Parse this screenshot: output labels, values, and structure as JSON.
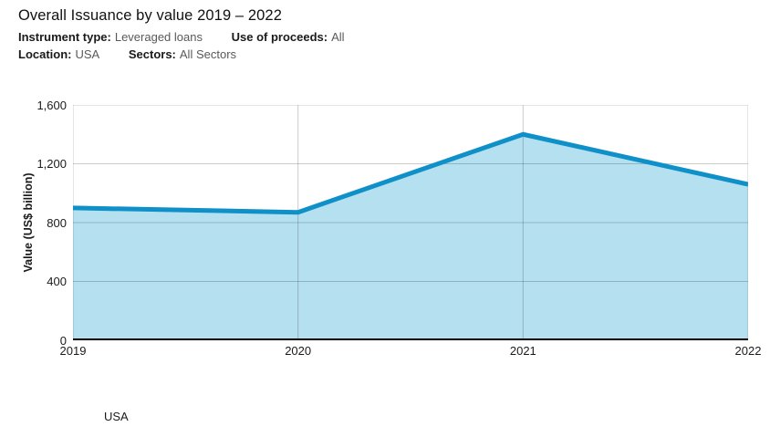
{
  "header": {
    "title": "Overall Issuance by value 2019 – 2022",
    "filters": [
      {
        "label": "Instrument type:",
        "value": "Leveraged loans"
      },
      {
        "label": "Use of proceeds:",
        "value": "All"
      },
      {
        "label": "Location:",
        "value": "USA"
      },
      {
        "label": "Sectors:",
        "value": "All Sectors"
      }
    ]
  },
  "chart_data": {
    "type": "area",
    "title": "Overall Issuance by value 2019 – 2022",
    "categories": [
      "2019",
      "2020",
      "2021",
      "2022"
    ],
    "series": [
      {
        "name": "USA",
        "values": [
          900,
          870,
          1400,
          1060
        ]
      }
    ],
    "xlabel": "",
    "ylabel": "Value (US$ billion)",
    "ylim": [
      0,
      1600
    ],
    "yticks": [
      0,
      400,
      800,
      1200,
      1600
    ],
    "grid": true,
    "legend_position": "bottom-left",
    "colors": {
      "line": "#0f90c9",
      "fill": "#b5e0f0",
      "grid": "rgba(0,0,0,0.2)",
      "axis": "#000000",
      "tick_text": "#1a1a1a"
    }
  },
  "legend": {
    "items": [
      {
        "label": "USA",
        "line_color": "#0f90c9",
        "fill_color": "#a9daef"
      }
    ]
  }
}
